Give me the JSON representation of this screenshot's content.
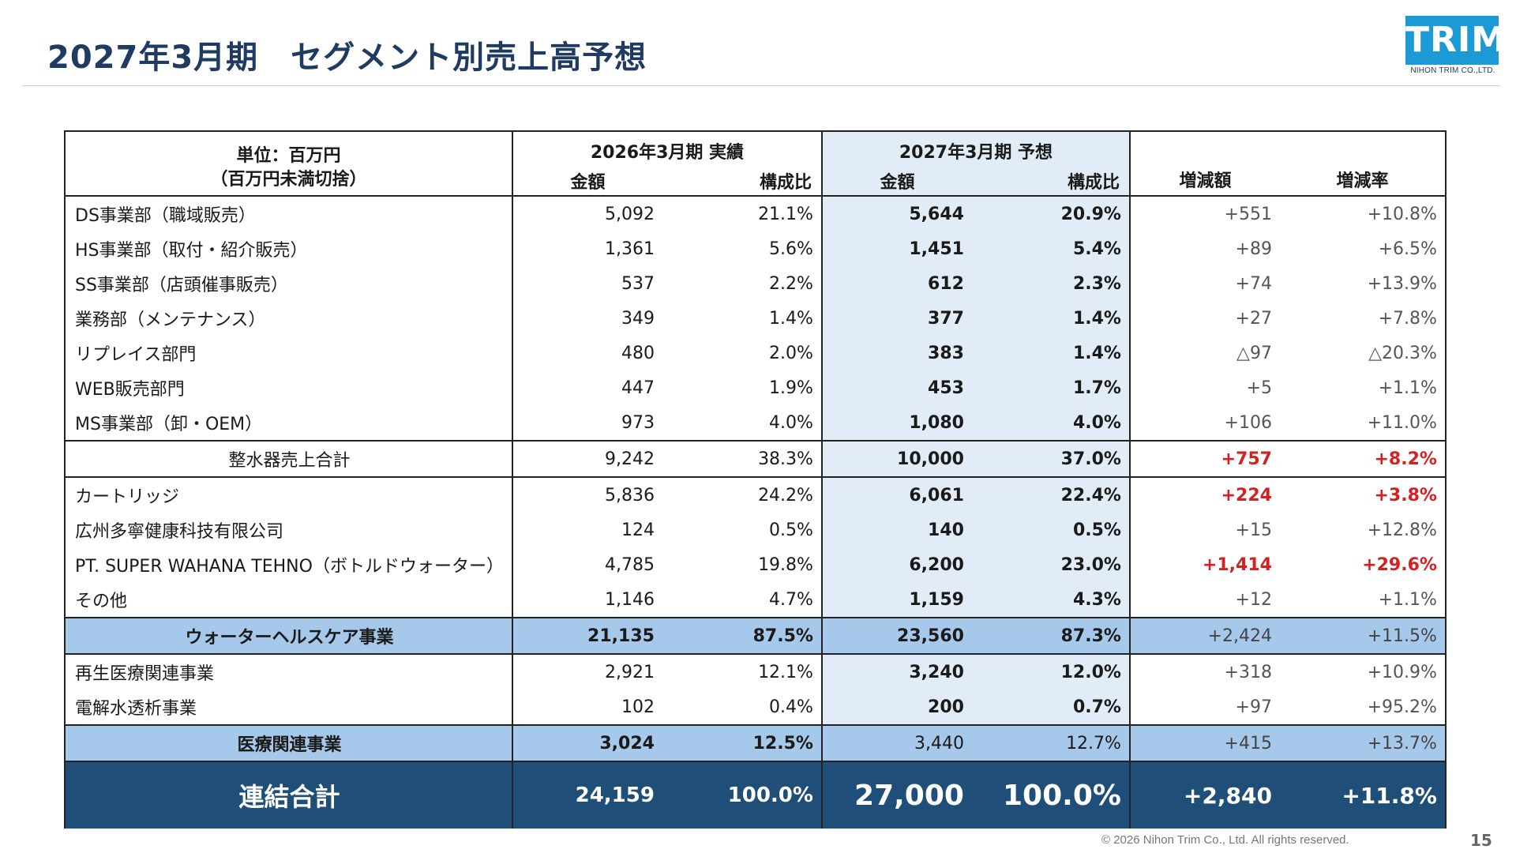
{
  "title": "2027年3月期　セグメント別売上高予想",
  "logo": {
    "mark": "TRIM",
    "sub": "NIHON TRIM CO.,LTD."
  },
  "table": {
    "unit_line1": "単位：百万円",
    "unit_line2": "（百万円未満切捨）",
    "actual_header": "2026年3月期 実績",
    "forecast_header": "2027年3月期 予想",
    "amount_label": "金額",
    "ratio_label": "構成比",
    "change_amount_label": "増減額",
    "change_rate_label": "増減率",
    "rows": [
      {
        "label": "DS事業部（職域販売）",
        "a_amt": "5,092",
        "a_ratio": "21.1%",
        "f_amt": "5,644",
        "f_ratio": "20.9%",
        "chg": "+551",
        "rate": "+10.8%"
      },
      {
        "label": "HS事業部（取付・紹介販売）",
        "a_amt": "1,361",
        "a_ratio": "5.6%",
        "f_amt": "1,451",
        "f_ratio": "5.4%",
        "chg": "+89",
        "rate": "+6.5%"
      },
      {
        "label": "SS事業部（店頭催事販売）",
        "a_amt": "537",
        "a_ratio": "2.2%",
        "f_amt": "612",
        "f_ratio": "2.3%",
        "chg": "+74",
        "rate": "+13.9%"
      },
      {
        "label": "業務部（メンテナンス）",
        "a_amt": "349",
        "a_ratio": "1.4%",
        "f_amt": "377",
        "f_ratio": "1.4%",
        "chg": "+27",
        "rate": "+7.8%"
      },
      {
        "label": "リプレイス部門",
        "a_amt": "480",
        "a_ratio": "2.0%",
        "f_amt": "383",
        "f_ratio": "1.4%",
        "chg": "△97",
        "rate": "△20.3%"
      },
      {
        "label": "WEB販売部門",
        "a_amt": "447",
        "a_ratio": "1.9%",
        "f_amt": "453",
        "f_ratio": "1.7%",
        "chg": "+5",
        "rate": "+1.1%"
      },
      {
        "label": "MS事業部（卸・OEM）",
        "a_amt": "973",
        "a_ratio": "4.0%",
        "f_amt": "1,080",
        "f_ratio": "4.0%",
        "chg": "+106",
        "rate": "+11.0%"
      },
      {
        "label": "整水器売上合計",
        "a_amt": "9,242",
        "a_ratio": "38.3%",
        "f_amt": "10,000",
        "f_ratio": "37.0%",
        "chg": "+757",
        "rate": "+8.2%"
      },
      {
        "label": "カートリッジ",
        "a_amt": "5,836",
        "a_ratio": "24.2%",
        "f_amt": "6,061",
        "f_ratio": "22.4%",
        "chg": "+224",
        "rate": "+3.8%"
      },
      {
        "label": "広州多寧健康科技有限公司",
        "a_amt": "124",
        "a_ratio": "0.5%",
        "f_amt": "140",
        "f_ratio": "0.5%",
        "chg": "+15",
        "rate": "+12.8%"
      },
      {
        "label": "PT. SUPER WAHANA TEHNO（ボトルドウォーター）",
        "a_amt": "4,785",
        "a_ratio": "19.8%",
        "f_amt": "6,200",
        "f_ratio": "23.0%",
        "chg": "+1,414",
        "rate": "+29.6%"
      },
      {
        "label": "その他",
        "a_amt": "1,146",
        "a_ratio": "4.7%",
        "f_amt": "1,159",
        "f_ratio": "4.3%",
        "chg": "+12",
        "rate": "+1.1%"
      },
      {
        "label": "ウォーターヘルスケア事業",
        "a_amt": "21,135",
        "a_ratio": "87.5%",
        "f_amt": "23,560",
        "f_ratio": "87.3%",
        "chg": "+2,424",
        "rate": "+11.5%"
      },
      {
        "label": "再生医療関連事業",
        "a_amt": "2,921",
        "a_ratio": "12.1%",
        "f_amt": "3,240",
        "f_ratio": "12.0%",
        "chg": "+318",
        "rate": "+10.9%"
      },
      {
        "label": "電解水透析事業",
        "a_amt": "102",
        "a_ratio": "0.4%",
        "f_amt": "200",
        "f_ratio": "0.7%",
        "chg": "+97",
        "rate": "+95.2%"
      },
      {
        "label": "医療関連事業",
        "a_amt": "3,024",
        "a_ratio": "12.5%",
        "f_amt": "3,440",
        "f_ratio": "12.7%",
        "chg": "+415",
        "rate": "+13.7%"
      },
      {
        "label": "連結合計",
        "a_amt": "24,159",
        "a_ratio": "100.0%",
        "f_amt": "27,000",
        "f_ratio": "100.0%",
        "chg": "+2,840",
        "rate": "+11.8%"
      }
    ]
  },
  "colors": {
    "title": "#1f3b62",
    "forecast_bg": "#e2ecf7",
    "segment_bg": "#a6c8ea",
    "total_bg": "#1f4e79",
    "positive_highlight": "#d42020"
  },
  "footer": "© 2026 Nihon Trim Co., Ltd. All rights reserved.",
  "page_number": "15"
}
